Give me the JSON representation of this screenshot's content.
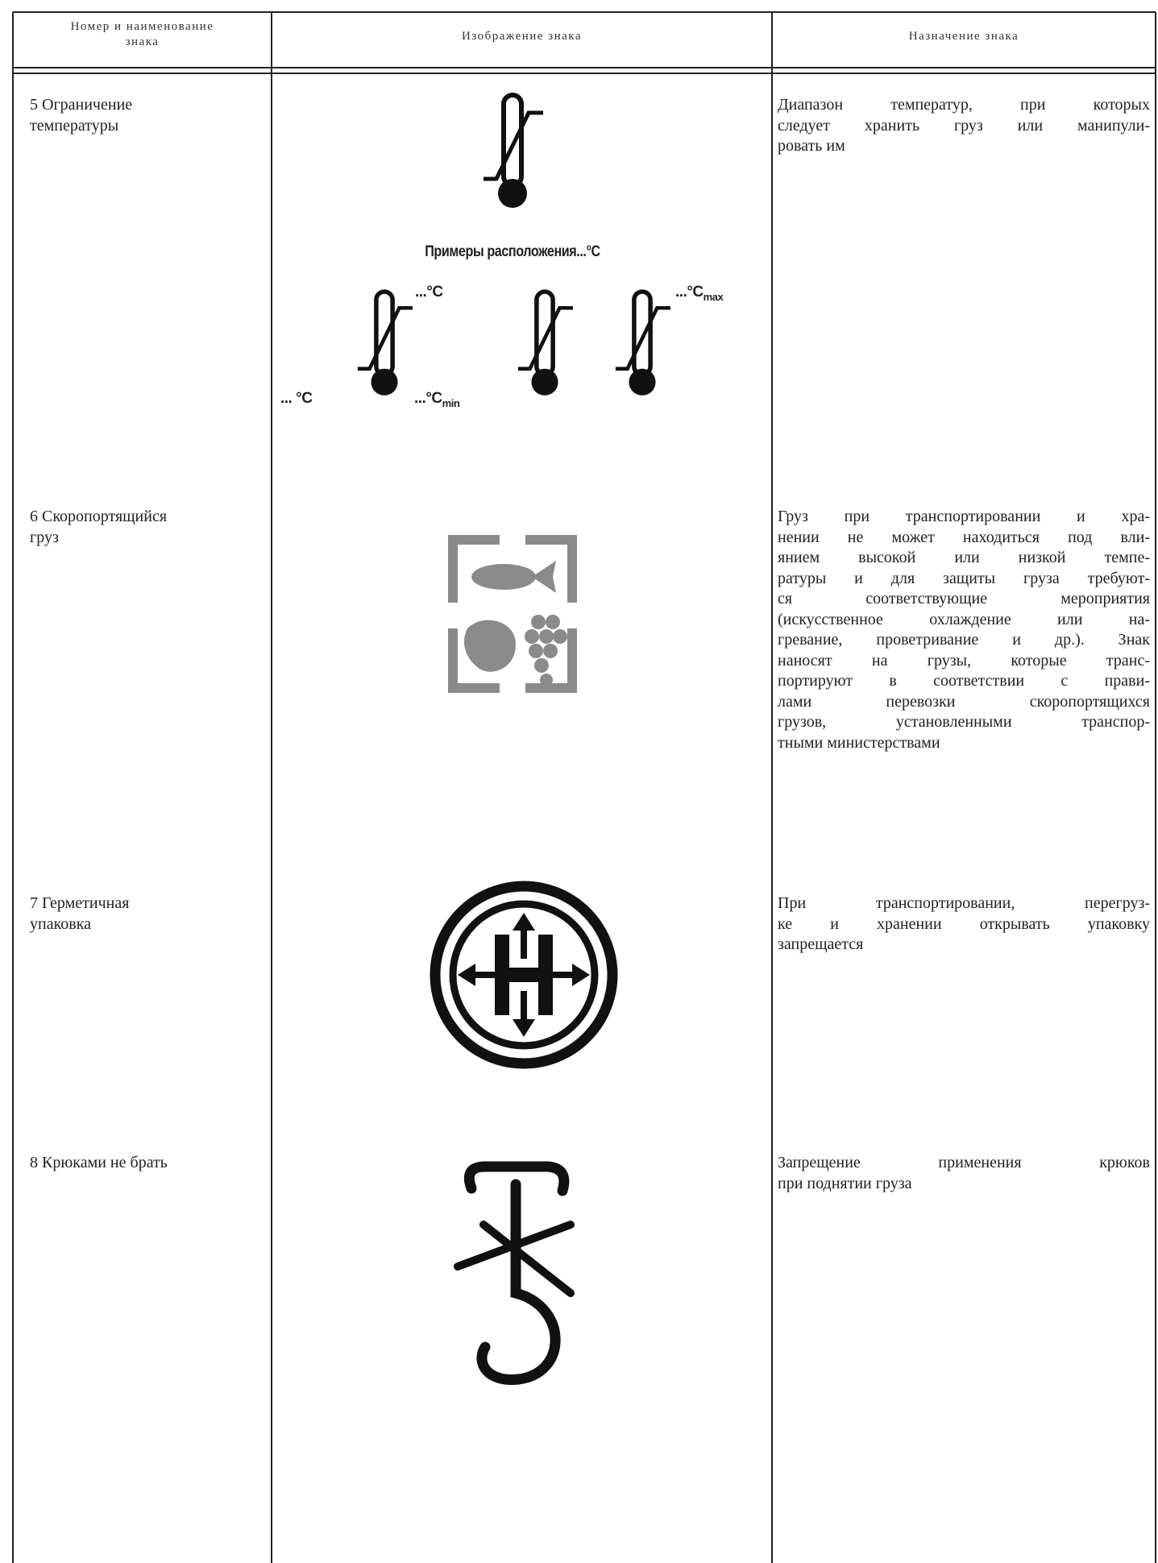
{
  "header": {
    "columns": [
      [
        "Номер и наименование",
        "знака"
      ],
      [
        "Изображение знака"
      ],
      [
        "Назначение знака"
      ]
    ]
  },
  "rows": [
    {
      "name": [
        "5 Ограничение",
        "температуры"
      ],
      "description": [
        "Диапазон температур, при которых",
        "следует хранить груз или манипули-",
        "ровать им"
      ]
    },
    {
      "name": [
        "6 Скоропортящийся",
        "груз"
      ],
      "description": [
        "Груз при транспортировании и хра-",
        "нении не может находиться под вли-",
        "янием высокой или низкой темпе-",
        "ратуры и для защиты груза требуют-",
        "ся соответствующие мероприятия",
        "(искусственное охлаждение или на-",
        "гревание, проветривание и др.). Знак",
        "наносят на грузы, которые транс-",
        "портируют в соответствии с прави-",
        "лами перевозки скоропортящихся",
        "грузов, установленными транспор-",
        "тными министерствами"
      ]
    },
    {
      "name": [
        "7 Герметичная",
        "упаковка"
      ],
      "description": [
        "При транспортировании, перегруз-",
        "ке и хранении открывать упаковку",
        "запрещается"
      ]
    },
    {
      "name": [
        "8 Крюками не брать"
      ],
      "description": [
        "Запрещение применения крюков",
        "при поднятии груза"
      ]
    }
  ],
  "annotations": {
    "caption": "Примеры расположения...°C",
    "labels": [
      {
        "text": "...°C"
      },
      {
        "text": "... °C"
      },
      {
        "text": "...°C",
        "sub": "min"
      },
      {
        "text": "...°C",
        "sub": "max"
      }
    ]
  }
}
